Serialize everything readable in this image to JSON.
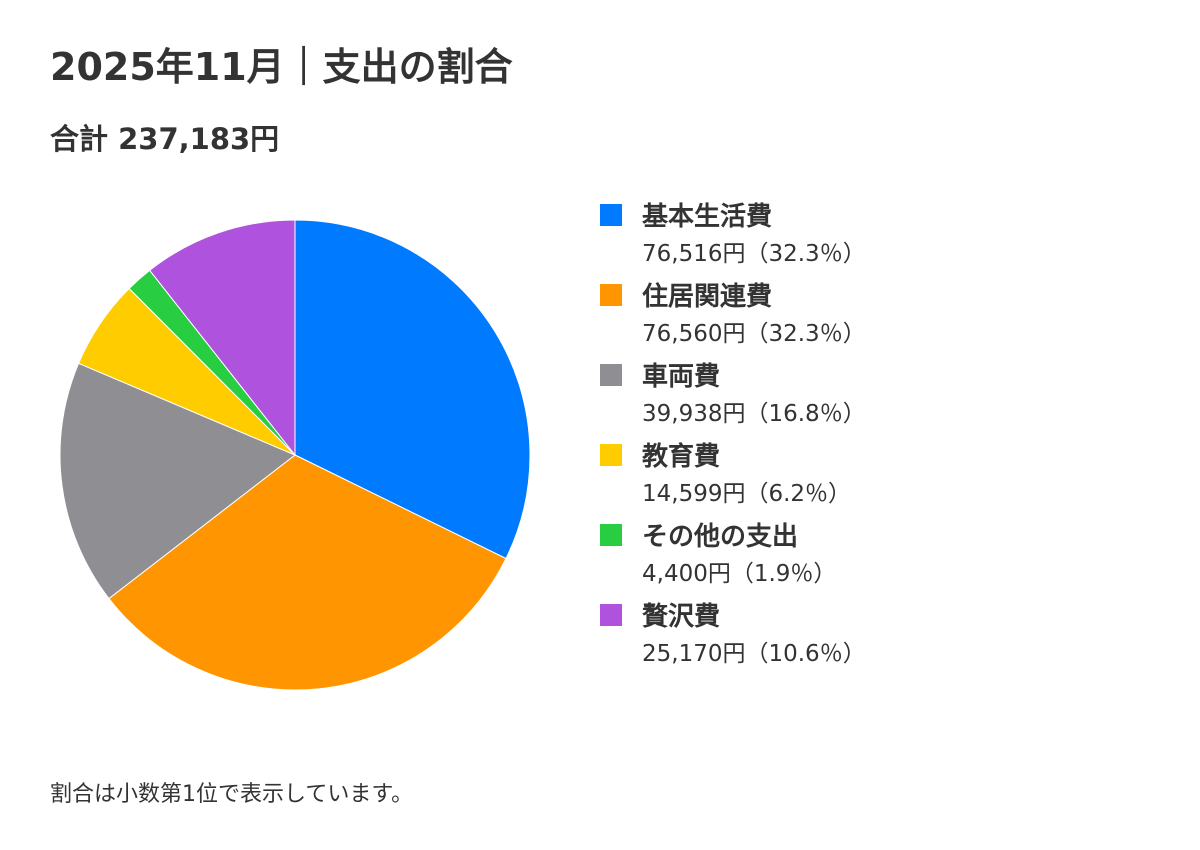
{
  "header": {
    "title": "2025年11月｜支出の割合",
    "total": "合計 237,183円"
  },
  "footnote": "割合は小数第1位で表示しています。",
  "chart_data": {
    "type": "pie",
    "title": "2025年11月｜支出の割合",
    "subtitle": "合計 237,183円",
    "legend_position": "right",
    "slices": [
      {
        "label": "基本生活費",
        "value": 76516,
        "percent": 32.3,
        "value_text": "76,516円（32.3％）",
        "color": "#007AFF"
      },
      {
        "label": "住居関連費",
        "value": 76560,
        "percent": 32.3,
        "value_text": "76,560円（32.3％）",
        "color": "#FF9500"
      },
      {
        "label": "車両費",
        "value": 39938,
        "percent": 16.8,
        "value_text": "39,938円（16.8％）",
        "color": "#8E8E93"
      },
      {
        "label": "教育費",
        "value": 14599,
        "percent": 6.2,
        "value_text": "14,599円（6.2％）",
        "color": "#FFCC00"
      },
      {
        "label": "その他の支出",
        "value": 4400,
        "percent": 1.9,
        "value_text": "4,400円（1.9％）",
        "color": "#28CD41"
      },
      {
        "label": "贅沢費",
        "value": 25170,
        "percent": 10.6,
        "value_text": "25,170円（10.6％）",
        "color": "#AF52DE"
      }
    ]
  }
}
